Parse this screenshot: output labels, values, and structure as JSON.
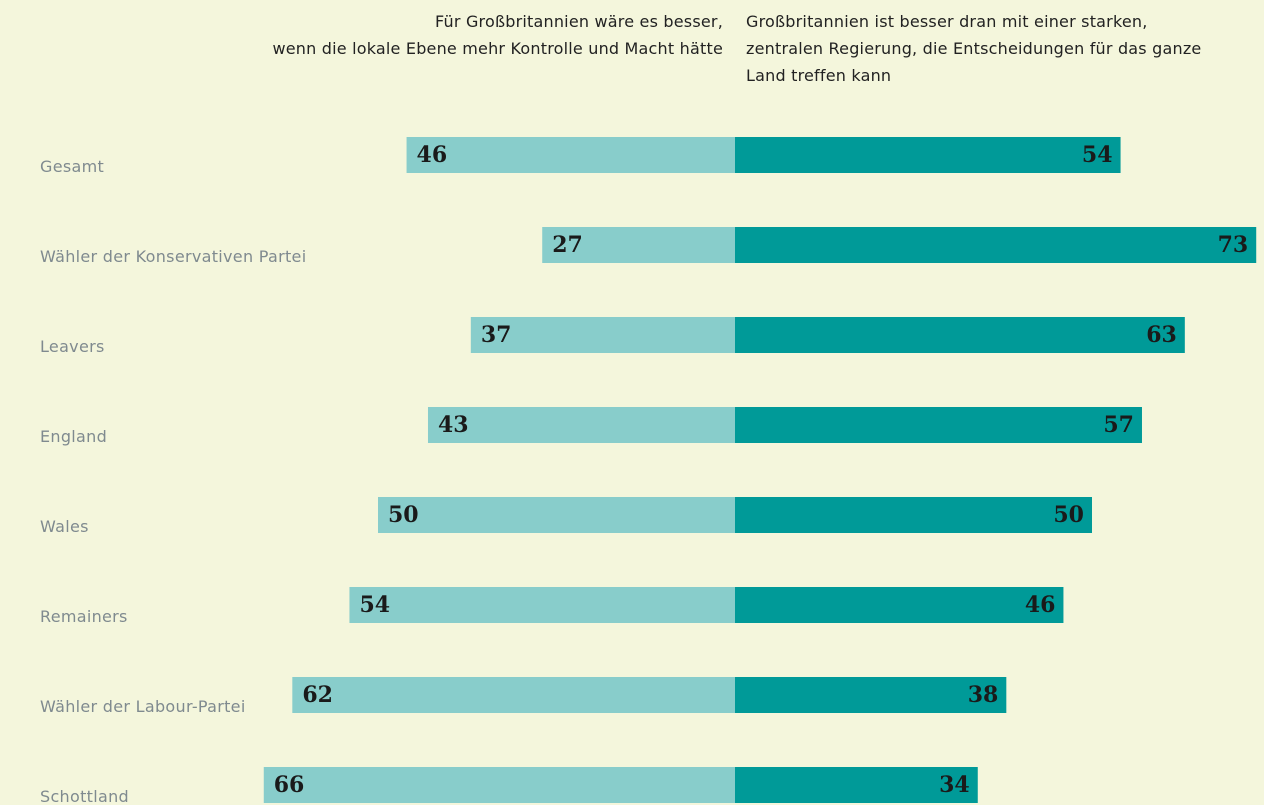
{
  "chart_data": {
    "type": "diverging-bar",
    "categories": [
      "Gesamt",
      "Wähler der Konservativen Partei",
      "Leavers",
      "England",
      "Wales",
      "Remainers",
      "Wähler der Labour-Partei",
      "Schottland"
    ],
    "series": [
      {
        "name": "Für Großbritannien wäre es besser,\nwenn die lokale Ebene mehr Kontrolle und Macht hätte",
        "color": "#88cdcb",
        "values": [
          46,
          27,
          37,
          43,
          50,
          54,
          62,
          66
        ]
      },
      {
        "name": "Großbritannien ist besser dran mit einer starken,\nzentralen Regierung, die Entscheidungen für das ganze\nLand treffen kann",
        "color": "#009a98",
        "values": [
          54,
          73,
          63,
          57,
          50,
          46,
          38,
          34
        ]
      }
    ]
  }
}
